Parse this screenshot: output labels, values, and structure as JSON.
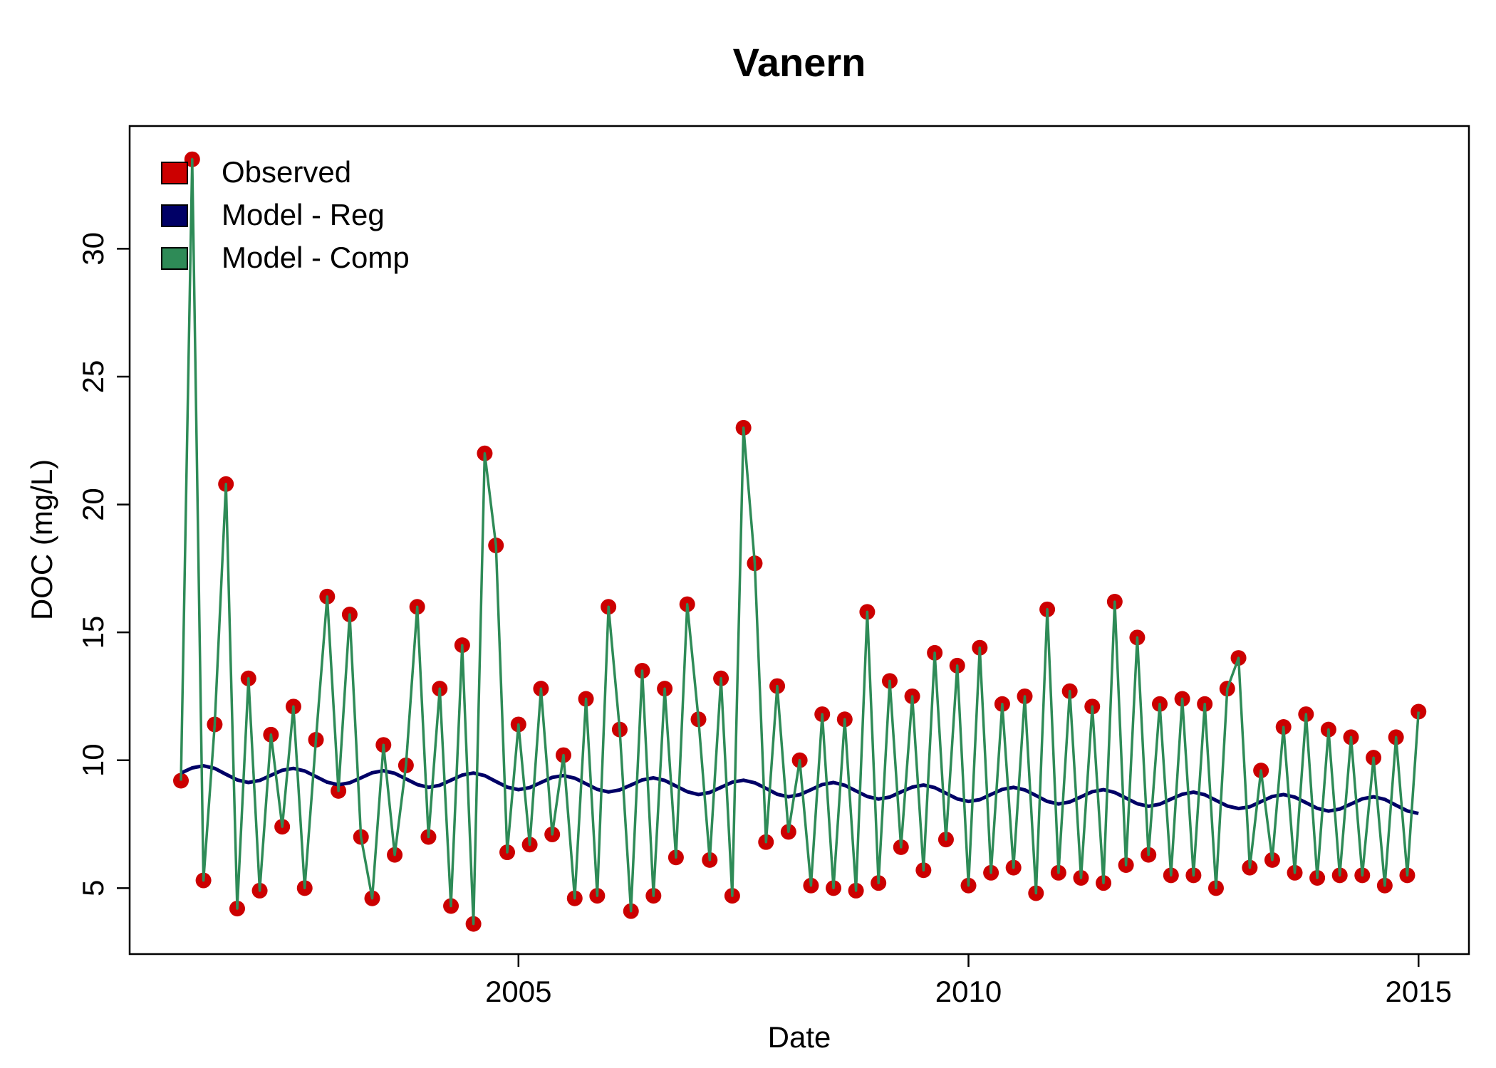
{
  "chart_data": {
    "type": "line",
    "title": "Vanern",
    "xlabel": "Date",
    "ylabel": "DOC (mg/L)",
    "x": [
      2001.25,
      2001.375,
      2001.5,
      2001.625,
      2001.75,
      2001.875,
      2002,
      2002.125,
      2002.25,
      2002.375,
      2002.5,
      2002.625,
      2002.75,
      2002.875,
      2003,
      2003.125,
      2003.25,
      2003.375,
      2003.5,
      2003.625,
      2003.75,
      2003.875,
      2004,
      2004.125,
      2004.25,
      2004.375,
      2004.5,
      2004.625,
      2004.75,
      2004.875,
      2005,
      2005.125,
      2005.25,
      2005.375,
      2005.5,
      2005.625,
      2005.75,
      2005.875,
      2006,
      2006.125,
      2006.25,
      2006.375,
      2006.5,
      2006.625,
      2006.75,
      2006.875,
      2007,
      2007.125,
      2007.25,
      2007.375,
      2007.5,
      2007.625,
      2007.75,
      2007.875,
      2008,
      2008.125,
      2008.25,
      2008.375,
      2008.5,
      2008.625,
      2008.75,
      2008.875,
      2009,
      2009.125,
      2009.25,
      2009.375,
      2009.5,
      2009.625,
      2009.75,
      2009.875,
      2010,
      2010.125,
      2010.25,
      2010.375,
      2010.5,
      2010.625,
      2010.75,
      2010.875,
      2011,
      2011.125,
      2011.25,
      2011.375,
      2011.5,
      2011.625,
      2011.75,
      2011.875,
      2012,
      2012.125,
      2012.25,
      2012.375,
      2012.5,
      2012.625,
      2012.75,
      2012.875,
      2013,
      2013.125,
      2013.25,
      2013.375,
      2013.5,
      2013.625,
      2013.75,
      2013.875,
      2014,
      2014.125,
      2014.25,
      2014.375,
      2014.5,
      2014.625,
      2014.75,
      2014.875,
      2015
    ],
    "series": [
      {
        "name": "Observed",
        "color": "#cc0000",
        "style": "points",
        "values": [
          9.2,
          33.5,
          5.3,
          11.4,
          20.8,
          4.2,
          13.2,
          4.9,
          11.0,
          7.4,
          12.1,
          5.0,
          10.8,
          16.4,
          8.8,
          15.7,
          7.0,
          4.6,
          10.6,
          6.3,
          9.8,
          16.0,
          7.0,
          12.8,
          4.3,
          14.5,
          3.6,
          22.0,
          18.4,
          6.4,
          11.4,
          6.7,
          12.8,
          7.1,
          10.2,
          4.6,
          12.4,
          4.7,
          16.0,
          11.2,
          4.1,
          13.5,
          4.7,
          12.8,
          6.2,
          16.1,
          11.6,
          6.1,
          13.2,
          4.7,
          23.0,
          17.7,
          6.8,
          12.9,
          7.2,
          10.0,
          5.1,
          11.8,
          5.0,
          11.6,
          4.9,
          15.8,
          5.2,
          13.1,
          6.6,
          12.5,
          5.7,
          14.2,
          6.9,
          13.7,
          5.1,
          14.4,
          5.6,
          12.2,
          5.8,
          12.5,
          4.8,
          15.9,
          5.6,
          12.7,
          5.4,
          12.1,
          5.2,
          16.2,
          5.9,
          14.8,
          6.3,
          12.2,
          5.5,
          12.4,
          5.5,
          12.2,
          5.0,
          12.8,
          14.0,
          5.8,
          9.6,
          6.1,
          11.3,
          5.6,
          11.8,
          5.4,
          11.2,
          5.5,
          10.9,
          5.5,
          10.1,
          5.1,
          10.9,
          5.5,
          11.9
        ]
      },
      {
        "name": "Model - Reg",
        "color": "#000066",
        "style": "line",
        "values": [
          9.5,
          9.7,
          9.78,
          9.68,
          9.45,
          9.23,
          9.13,
          9.21,
          9.41,
          9.61,
          9.68,
          9.58,
          9.36,
          9.14,
          9.04,
          9.12,
          9.31,
          9.51,
          9.59,
          9.49,
          9.27,
          9.05,
          8.94,
          9.02,
          9.22,
          9.42,
          9.5,
          9.4,
          9.17,
          8.95,
          8.85,
          8.93,
          9.13,
          9.33,
          9.4,
          9.3,
          9.08,
          8.86,
          8.76,
          8.84,
          9.03,
          9.23,
          9.31,
          9.21,
          8.99,
          8.77,
          8.66,
          8.74,
          8.94,
          9.14,
          9.22,
          9.12,
          8.9,
          8.67,
          8.57,
          8.65,
          8.85,
          9.05,
          9.13,
          9.02,
          8.8,
          8.58,
          8.48,
          8.56,
          8.76,
          8.95,
          9.03,
          8.93,
          8.71,
          8.49,
          8.39,
          8.46,
          8.66,
          8.86,
          8.94,
          8.84,
          8.62,
          8.39,
          8.29,
          8.37,
          8.57,
          8.77,
          8.85,
          8.74,
          8.52,
          8.3,
          8.2,
          8.28,
          8.48,
          8.67,
          8.75,
          8.65,
          8.43,
          8.21,
          8.11,
          8.18,
          8.38,
          8.58,
          8.66,
          8.56,
          8.34,
          8.12,
          8.01,
          8.09,
          8.29,
          8.49,
          8.57,
          8.47,
          8.24,
          8.02,
          7.92
        ]
      },
      {
        "name": "Model - Comp",
        "color": "#2e8b57",
        "style": "line",
        "values": [
          9.2,
          33.5,
          5.3,
          11.4,
          20.8,
          4.2,
          13.2,
          4.9,
          11.0,
          7.4,
          12.1,
          5.0,
          10.8,
          16.4,
          8.8,
          15.7,
          7.0,
          4.6,
          10.6,
          6.3,
          9.8,
          16.0,
          7.0,
          12.8,
          4.3,
          14.5,
          3.6,
          22.0,
          18.4,
          6.4,
          11.4,
          6.7,
          12.8,
          7.1,
          10.2,
          4.6,
          12.4,
          4.7,
          16.0,
          11.2,
          4.1,
          13.5,
          4.7,
          12.8,
          6.2,
          16.1,
          11.6,
          6.1,
          13.2,
          4.7,
          23.0,
          17.7,
          6.8,
          12.9,
          7.2,
          10.0,
          5.1,
          11.8,
          5.0,
          11.6,
          4.9,
          15.8,
          5.2,
          13.1,
          6.6,
          12.5,
          5.7,
          14.2,
          6.9,
          13.7,
          5.1,
          14.4,
          5.6,
          12.2,
          5.8,
          12.5,
          4.8,
          15.9,
          5.6,
          12.7,
          5.4,
          12.1,
          5.2,
          16.2,
          5.9,
          14.8,
          6.3,
          12.2,
          5.5,
          12.4,
          5.5,
          12.2,
          5.0,
          12.8,
          14.0,
          5.8,
          9.6,
          6.1,
          11.3,
          5.6,
          11.8,
          5.4,
          11.2,
          5.5,
          10.9,
          5.5,
          10.1,
          5.1,
          10.9,
          5.5,
          11.9
        ]
      }
    ],
    "xlim": [
      2000.68,
      2015.56
    ],
    "ylim": [
      2.42,
      34.8
    ],
    "xticks": [
      2005,
      2010,
      2015
    ],
    "yticks": [
      5,
      10,
      15,
      20,
      25,
      30
    ],
    "legend": "top-left",
    "grid": false
  }
}
